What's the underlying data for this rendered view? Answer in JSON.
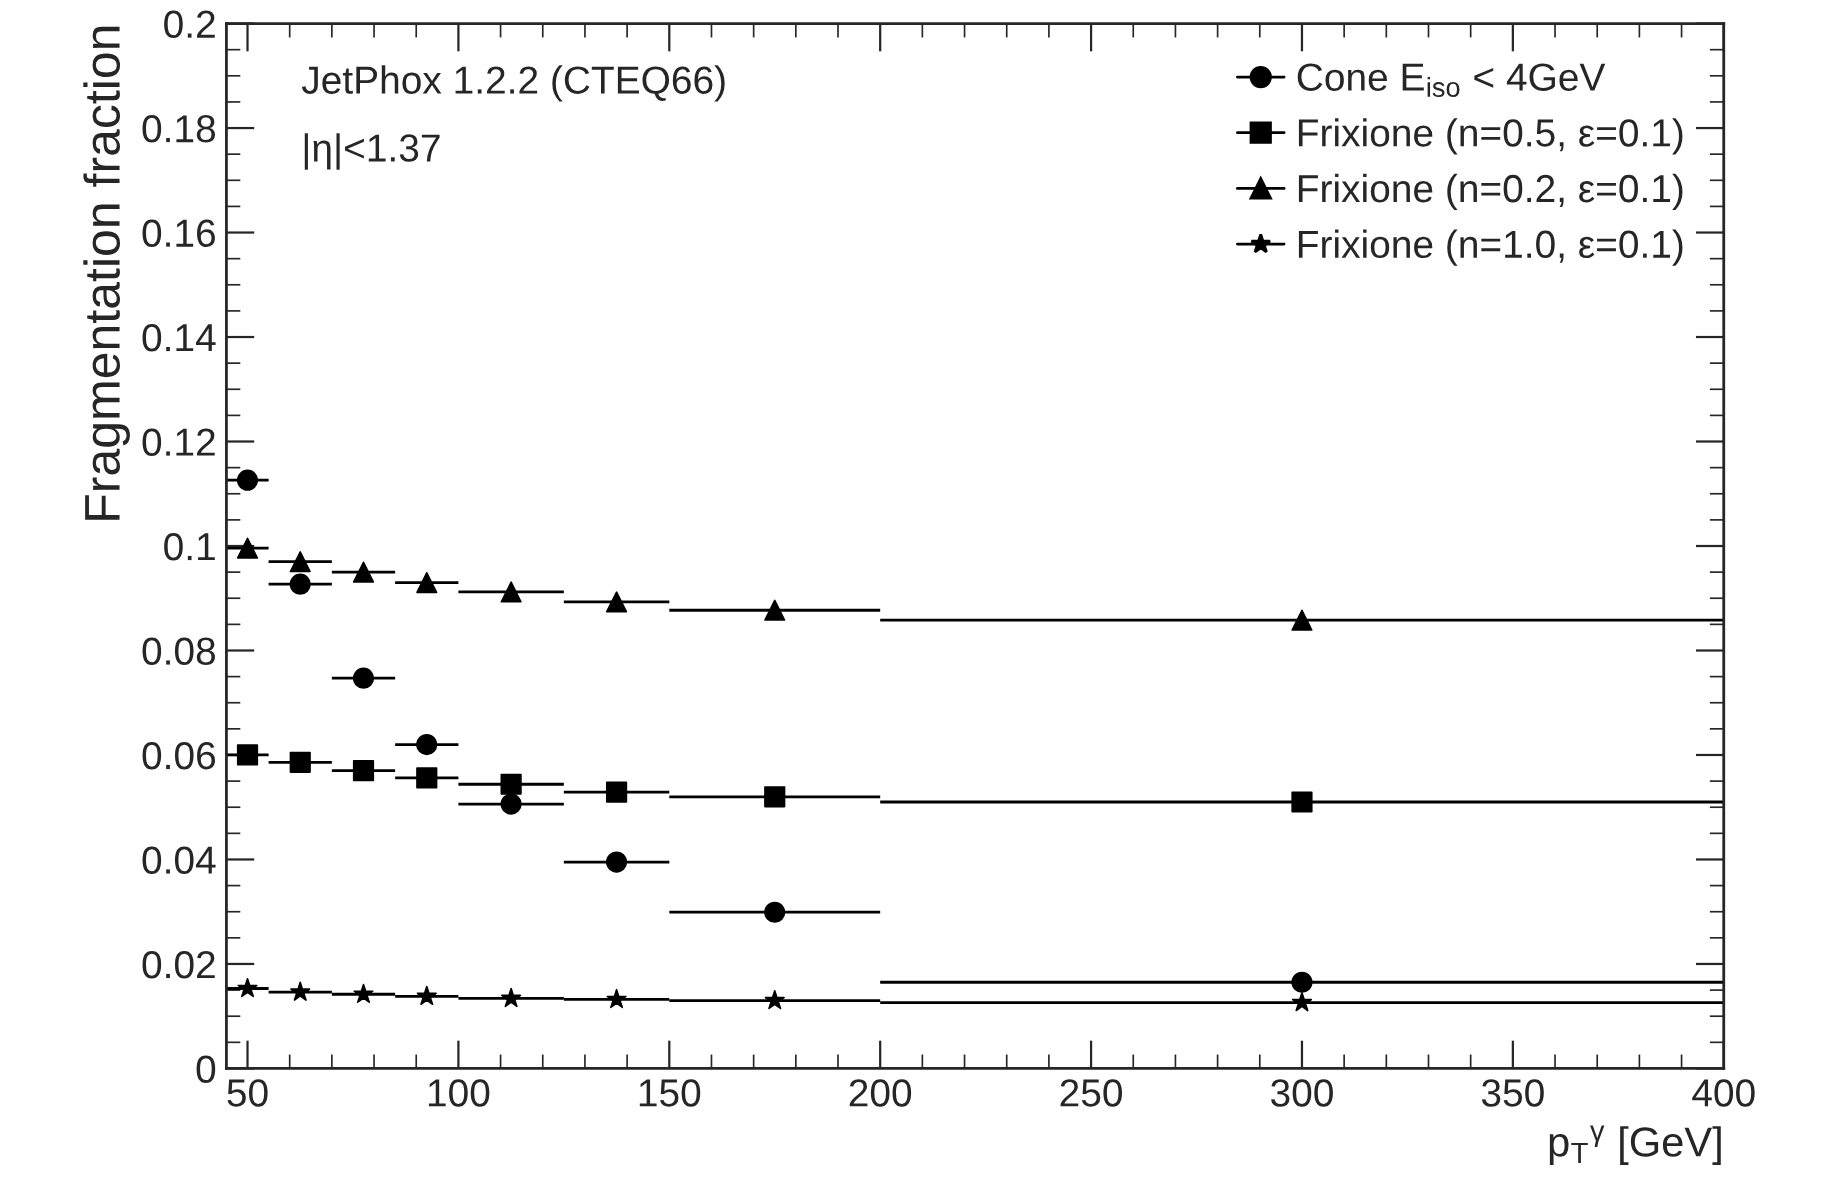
{
  "chart_data": {
    "type": "scatter",
    "xlabel": "p$_{T}$$^{γ}$ [GeV]",
    "ylabel": "Fragmentation fraction",
    "annotations": [
      "JetPhox 1.2.2 (CTEQ66)",
      "|η|<1.37"
    ],
    "x": [
      50,
      62.5,
      77.5,
      92.5,
      112.5,
      137.5,
      175,
      300
    ],
    "series": [
      {
        "name": "Cone E$_{iso}$ < 4GeV",
        "color": "#000000",
        "marker": "circle",
        "values": [
          0.1126,
          0.0927,
          0.0747,
          0.062,
          0.0506,
          0.0395,
          0.0299,
          0.0165
        ],
        "xerrors": [
          5,
          7.5,
          7.5,
          7.5,
          12.5,
          12.5,
          25,
          100
        ]
      },
      {
        "name": "Frixione (n=0.5, ε=0.1)",
        "color": "#000000",
        "marker": "square",
        "values": [
          0.06,
          0.0586,
          0.057,
          0.0556,
          0.0544,
          0.0529,
          0.052,
          0.051
        ],
        "xerrors": [
          5,
          7.5,
          7.5,
          7.5,
          12.5,
          12.5,
          25,
          100
        ]
      },
      {
        "name": "Frixione (n=0.2, ε=0.1)",
        "color": "#000000",
        "marker": "triangle",
        "values": [
          0.0996,
          0.097,
          0.095,
          0.093,
          0.0912,
          0.0893,
          0.0877,
          0.0858
        ],
        "xerrors": [
          5,
          7.5,
          7.5,
          7.5,
          12.5,
          12.5,
          25,
          100
        ]
      },
      {
        "name": "Frixione (n=1.0, ε=0.1)",
        "color": "#000000",
        "marker": "star",
        "values": [
          0.0153,
          0.0146,
          0.0142,
          0.0138,
          0.0134,
          0.0132,
          0.013,
          0.0126
        ],
        "xerrors": [
          5,
          7.5,
          7.5,
          7.5,
          12.5,
          12.5,
          25,
          100
        ]
      }
    ],
    "xlim": [
      45,
      400
    ],
    "xticks": [
      50,
      100,
      150,
      200,
      250,
      300,
      350,
      400
    ],
    "ylim": [
      0,
      0.2
    ],
    "yticks": [
      0,
      0.02,
      0.04,
      0.06,
      0.08,
      0.1,
      0.12,
      0.14,
      0.16,
      0.18,
      0.2
    ],
    "legend": "top right",
    "grid": false
  }
}
